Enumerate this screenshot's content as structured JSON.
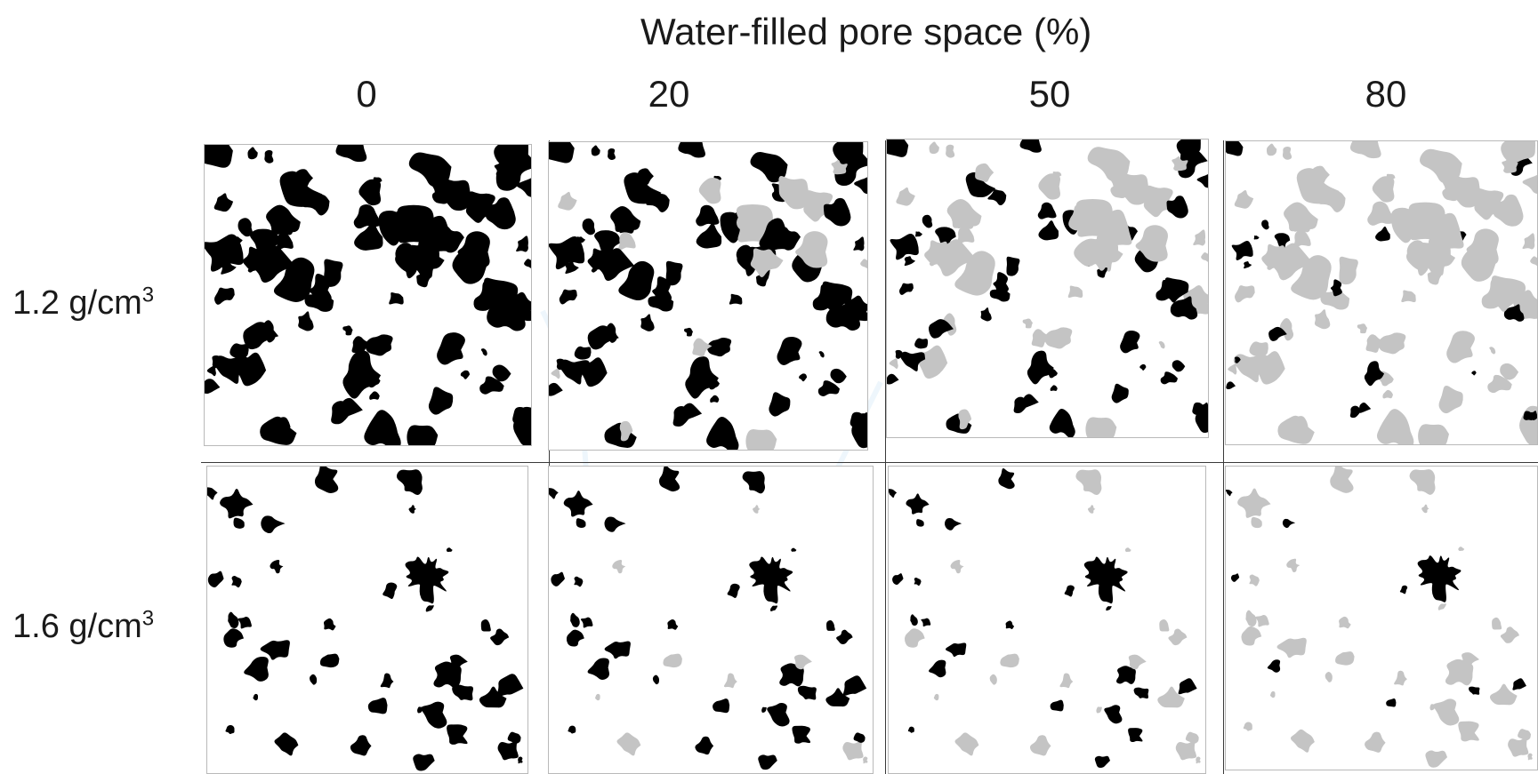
{
  "figure": {
    "title": "Water-filled pore space (%)",
    "columns": [
      "0",
      "20",
      "50",
      "80"
    ],
    "rows": [
      {
        "value": "1.2 g/cm",
        "sup": "3"
      },
      {
        "value": "1.6 g/cm",
        "sup": "3"
      }
    ]
  },
  "colors": {
    "air_pore": "#000000",
    "water_pore": "#c4c4c4",
    "solid": "#ffffff",
    "watermark": "#cfe8f7"
  }
}
